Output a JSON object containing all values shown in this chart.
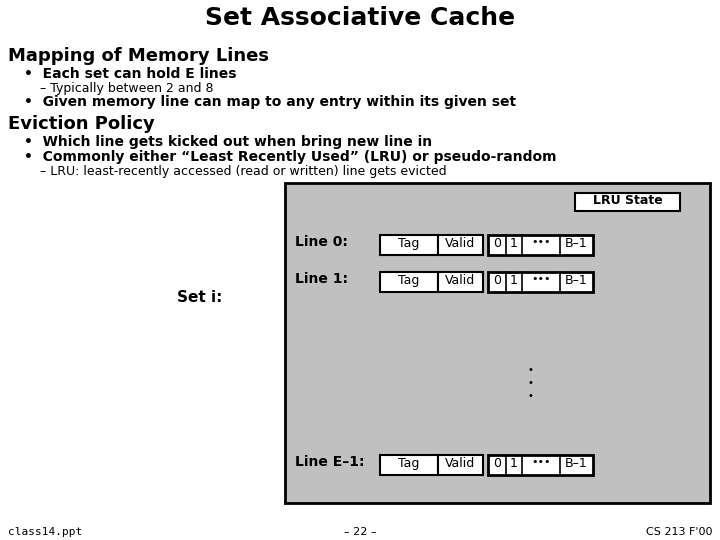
{
  "title": "Set Associative Cache",
  "section1": "Mapping of Memory Lines",
  "bullet1a": "Each set can hold E lines",
  "bullet1a_sub": "– Typically between 2 and 8",
  "bullet1b": "Given memory line can map to any entry within its given set",
  "section2": "Eviction Policy",
  "bullet2a": "Which line gets kicked out when bring new line in",
  "bullet2b": "Commonly either “Least Recently Used” (LRU) or pseudo-random",
  "bullet2b_sub": "– LRU: least-recently accessed (read or written) line gets evicted",
  "diagram_label": "Set i:",
  "line_labels": [
    "Line 0:",
    "Line 1:",
    "Line E–1:"
  ],
  "lru_state_label": "LRU State",
  "tag_label": "Tag",
  "valid_label": "Valid",
  "lru_cells": [
    "0",
    "1",
    "•••",
    "B–1"
  ],
  "footer_left": "class14.ppt",
  "footer_center": "– 22 –",
  "footer_right": "CS 213 F'00",
  "bg_color": "#ffffff",
  "diagram_bg": "#c0c0c0",
  "box_bg": "#ffffff"
}
